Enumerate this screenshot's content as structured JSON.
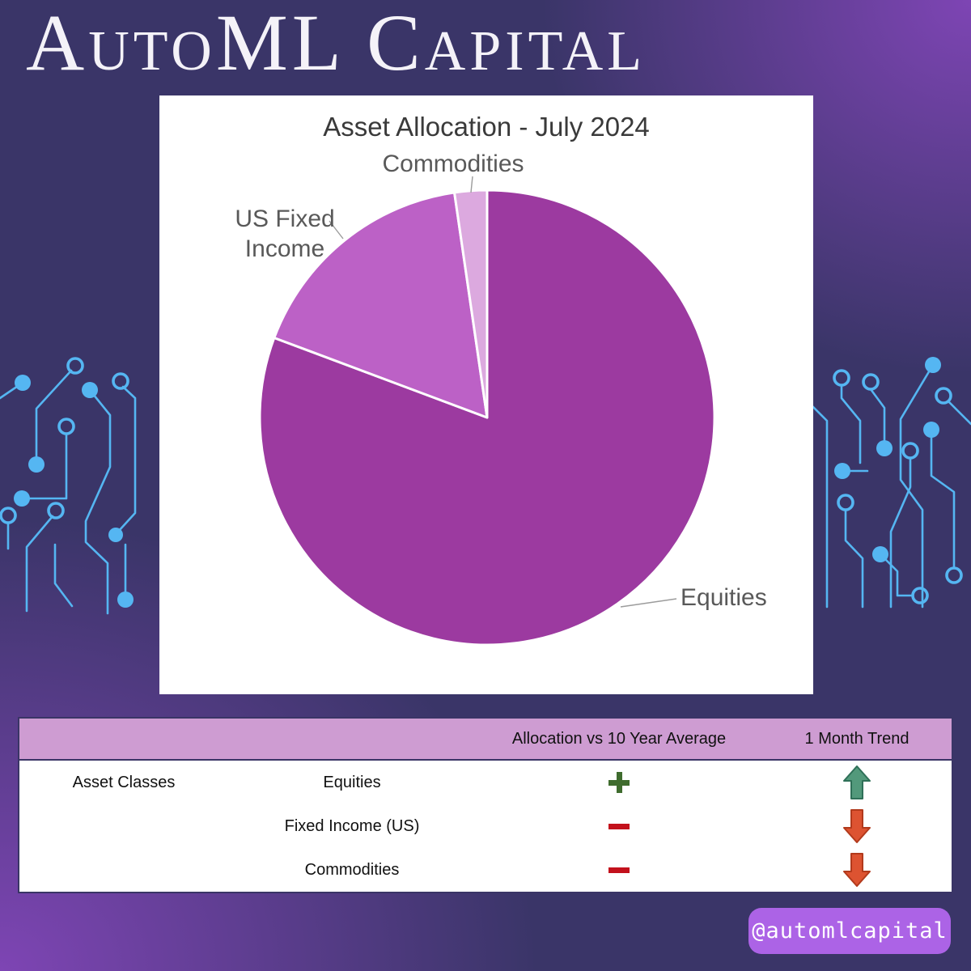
{
  "brand": {
    "title": "AutoML Capital",
    "handle": "@automlcapital"
  },
  "chart_data": {
    "type": "pie",
    "title": "Asset Allocation - July 2024",
    "categories": [
      "Equities",
      "US Fixed Income",
      "Commodities"
    ],
    "values": [
      80.7,
      17.0,
      2.3
    ],
    "values_note": "percent of portfolio, estimated from slice angles (no data labels shown)",
    "colors": [
      "#9C3AA0",
      "#BC61C6",
      "#DCA9DF"
    ],
    "start_angle_deg": 0,
    "direction": "clockwise",
    "legend_position": "none",
    "labels": {
      "equities": "Equities",
      "us_fixed_income_line1": "US Fixed",
      "us_fixed_income_line2": "Income",
      "commodities": "Commodities"
    }
  },
  "table": {
    "headers": [
      "",
      "",
      "Allocation vs 10 Year Average",
      "1 Month Trend"
    ],
    "row_group_label": "Asset Classes",
    "rows": [
      {
        "asset": "Equities",
        "allocation_vs_10yr": "+",
        "trend": "up"
      },
      {
        "asset": "Fixed Income (US)",
        "allocation_vs_10yr": "−",
        "trend": "down"
      },
      {
        "asset": "Commodities",
        "allocation_vs_10yr": "−",
        "trend": "down"
      }
    ]
  },
  "colors": {
    "background_base": "#3A3568",
    "corner_glow": "#7E45B4",
    "badge_bg": "#AC63E6",
    "badge_text": "#FFFFFF",
    "circuit": "#55B6F2",
    "card_bg": "#FFFFFF",
    "title_text": "#F4F2F8",
    "chart_text": "#595959",
    "plus": "#3F6C2E",
    "minus": "#C3111C",
    "arrow_up": "#52997B",
    "arrow_up_edge": "#2F7058",
    "arrow_down": "#DD5331",
    "arrow_down_edge": "#B23A1C",
    "table_border": "#3A3566",
    "table_header_bg": "#CE9CD2"
  }
}
